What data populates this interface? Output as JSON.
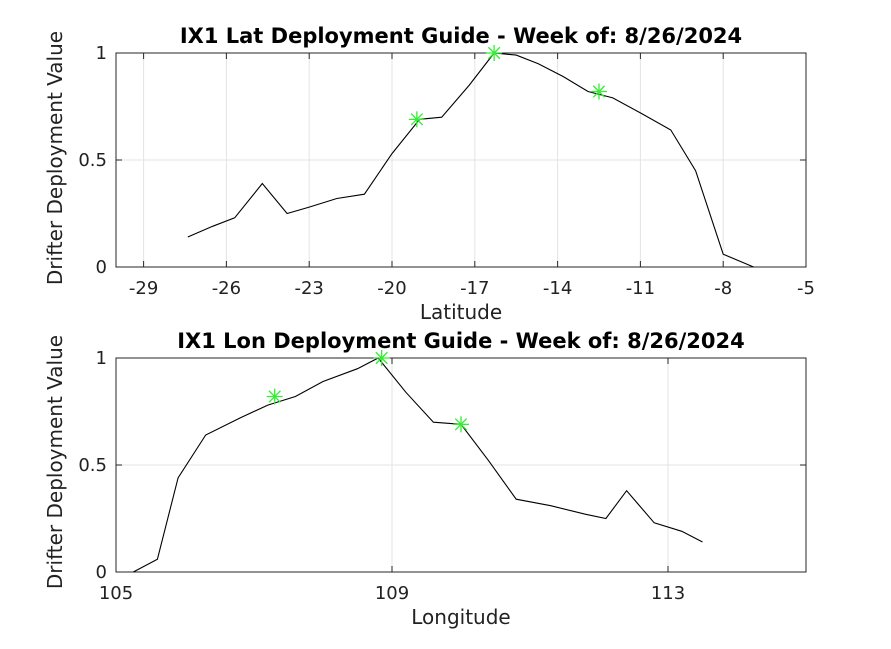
{
  "chart_data": [
    {
      "type": "line",
      "title": "IX1 Lat Deployment Guide - Week of: 8/26/2024",
      "xlabel": "Latitude",
      "ylabel": "Drifter Deployment Value",
      "xlim": [
        -30,
        -5
      ],
      "ylim": [
        0,
        1
      ],
      "xticks": [
        -29,
        -26,
        -23,
        -20,
        -17,
        -14,
        -11,
        -8,
        -5
      ],
      "xtick_labels": [
        "-29",
        "-26",
        "-23",
        "-20",
        "-17",
        "-14",
        "-11",
        "-8",
        "-5"
      ],
      "yticks": [
        0,
        0.5,
        1
      ],
      "ytick_labels": [
        "0",
        "0.5",
        "1"
      ],
      "grid": true,
      "line_color": "#000000",
      "marker_color": "#33ee33",
      "series": [
        {
          "x": [
            -27.4,
            -26.5,
            -25.7,
            -24.7,
            -23.8,
            -23.0,
            -22.0,
            -21.0,
            -20.0,
            -19.0,
            -18.2,
            -17.2,
            -16.3,
            -15.5,
            -14.7,
            -13.8,
            -12.9,
            -12.0,
            -11.0,
            -9.9,
            -9.0,
            -8.0,
            -6.9
          ],
          "y": [
            0.14,
            0.19,
            0.23,
            0.39,
            0.25,
            0.28,
            0.32,
            0.34,
            0.53,
            0.69,
            0.7,
            0.85,
            1.0,
            0.99,
            0.95,
            0.89,
            0.82,
            0.79,
            0.72,
            0.64,
            0.45,
            0.06,
            0.0
          ]
        }
      ],
      "markers": {
        "x": [
          -19.1,
          -16.3,
          -12.5
        ],
        "y": [
          0.69,
          1.0,
          0.82
        ]
      }
    },
    {
      "type": "line",
      "title": "IX1 Lon Deployment Guide - Week of: 8/26/2024",
      "xlabel": "Longitude",
      "ylabel": "Drifter Deployment Value",
      "xlim": [
        105,
        115
      ],
      "ylim": [
        0,
        1
      ],
      "xticks": [
        105,
        109,
        113
      ],
      "xtick_labels": [
        "105",
        "109",
        "113"
      ],
      "yticks": [
        0,
        0.5,
        1
      ],
      "ytick_labels": [
        "0",
        "0.5",
        "1"
      ],
      "grid": true,
      "line_color": "#000000",
      "marker_color": "#33ee33",
      "series": [
        {
          "x": [
            105.25,
            105.6,
            105.9,
            106.3,
            106.8,
            107.2,
            107.6,
            108.0,
            108.5,
            108.8,
            109.2,
            109.6,
            110.0,
            110.4,
            110.8,
            111.3,
            111.8,
            112.1,
            112.4,
            112.8,
            113.2,
            113.5
          ],
          "y": [
            0.0,
            0.06,
            0.44,
            0.64,
            0.72,
            0.78,
            0.82,
            0.89,
            0.95,
            1.0,
            0.84,
            0.7,
            0.69,
            0.52,
            0.34,
            0.31,
            0.27,
            0.25,
            0.38,
            0.23,
            0.19,
            0.14
          ]
        }
      ],
      "markers": {
        "x": [
          107.3,
          108.85,
          110.0
        ],
        "y": [
          0.82,
          1.0,
          0.69
        ]
      }
    }
  ]
}
